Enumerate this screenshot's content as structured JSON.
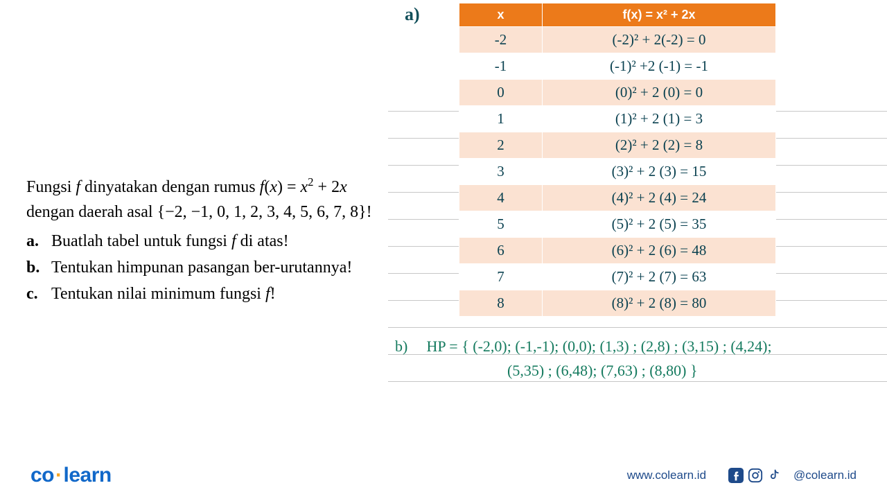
{
  "problem": {
    "intro_html": "Fungsi <span class='ital'>f</span> dinyatakan dengan rumus <span class='ital'>f</span>(<span class='ital'>x</span>) = <span class='ital'>x</span><sup>2</sup> + 2<span class='ital'>x</span> dengan daerah asal {−2, −1, 0, 1, 2, 3, 4, 5, 6, 7, 8}!",
    "questions": [
      {
        "label": "a.",
        "text_html": "Buatlah tabel untuk fungsi <span class='ital'>f</span> di atas!"
      },
      {
        "label": "b.",
        "text_html": "Tentukan himpunan pasangan ber-urutannya!"
      },
      {
        "label": "c.",
        "text_html": "Tentukan nilai minimum fungsi <span class='ital'>f</span>!"
      }
    ]
  },
  "marker_a": "a)",
  "table": {
    "header_bg": "#ec7a1a",
    "header_fg": "#ffffff",
    "row_odd_bg": "#fbe2d2",
    "row_even_bg": "#ffffff",
    "cell_color": "#0a4150",
    "col_x": "x",
    "col_fx": "f(x) = x² + 2x",
    "rows": [
      {
        "x": "-2",
        "fx": "(-2)² + 2(-2) = 0"
      },
      {
        "x": "-1",
        "fx": "(-1)² +2 (-1) = -1"
      },
      {
        "x": "0",
        "fx": "(0)² + 2 (0) = 0"
      },
      {
        "x": "1",
        "fx": "(1)²  + 2 (1) = 3"
      },
      {
        "x": "2",
        "fx": "(2)²  + 2 (2) = 8"
      },
      {
        "x": "3",
        "fx": "(3)²  + 2 (3) = 15"
      },
      {
        "x": "4",
        "fx": "(4)²  + 2 (4) = 24"
      },
      {
        "x": "5",
        "fx": "(5)²  + 2 (5) = 35"
      },
      {
        "x": "6",
        "fx": "(6)²  + 2 (6) = 48"
      },
      {
        "x": "7",
        "fx": "(7)²  + 2 (7) = 63"
      },
      {
        "x": "8",
        "fx": "(8)²  + 2 (8) = 80"
      }
    ]
  },
  "answer_b": {
    "label": "b)",
    "color": "#147a5e",
    "line1": "HP = { (-2,0); (-1,-1);  (0,0); (1,3) ; (2,8) ; (3,15) ; (4,24);",
    "line2": "(5,35) ; (6,48); (7,63) ; (8,80) }"
  },
  "footer": {
    "logo_co": "co",
    "logo_learn": "learn",
    "website": "www.colearn.id",
    "handle": "@colearn.id",
    "brand_color": "#1168c9",
    "dot_color": "#f6a423",
    "link_color": "#1e4a8a"
  },
  "ruled": {
    "start_top": 0,
    "gap": 39,
    "count": 11
  }
}
